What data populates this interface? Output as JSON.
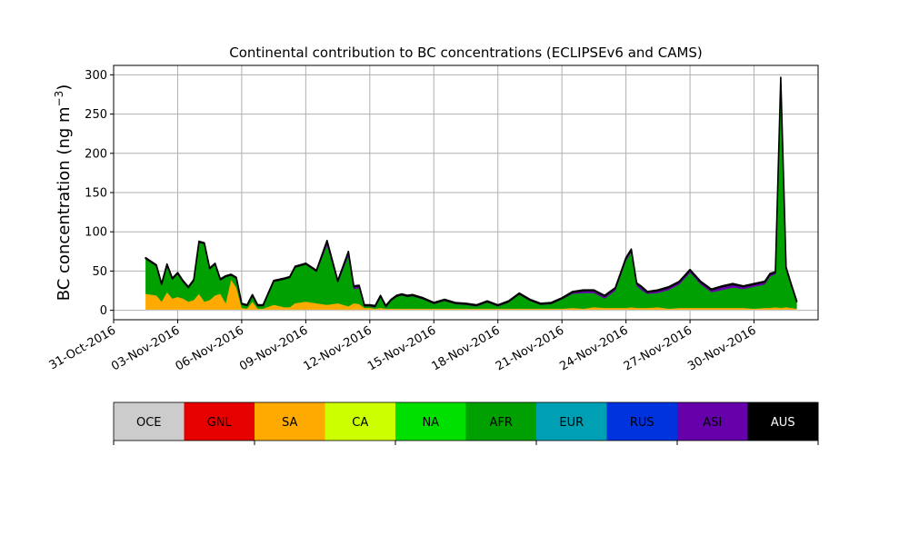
{
  "chart_data": {
    "type": "area",
    "stacked": true,
    "title": "Continental contribution to BC concentrations (ECLIPSEv6 and CAMS)",
    "ylabel": "BC concentration (ng m",
    "ylabel_sup": "−3",
    "ylabel_close": ")",
    "xlabel": "",
    "xlim": [
      "2016-10-31",
      "2016-12-03"
    ],
    "ylim": [
      -12,
      312
    ],
    "yticks": [
      0,
      50,
      100,
      150,
      200,
      250,
      300
    ],
    "xtick_labels": [
      "31-Oct-2016",
      "03-Nov-2016",
      "06-Nov-2016",
      "09-Nov-2016",
      "12-Nov-2016",
      "15-Nov-2016",
      "18-Nov-2016",
      "21-Nov-2016",
      "24-Nov-2016",
      "27-Nov-2016",
      "30-Nov-2016"
    ],
    "grid": true,
    "series_order": [
      "OCE",
      "SA",
      "AFR",
      "ASI",
      "AUS"
    ],
    "x": [
      "2016-11-01 12:00",
      "2016-11-02 00:00",
      "2016-11-02 06:00",
      "2016-11-02 12:00",
      "2016-11-02 18:00",
      "2016-11-03 00:00",
      "2016-11-03 06:00",
      "2016-11-03 12:00",
      "2016-11-03 18:00",
      "2016-11-04 00:00",
      "2016-11-04 06:00",
      "2016-11-04 12:00",
      "2016-11-04 18:00",
      "2016-11-05 00:00",
      "2016-11-05 06:00",
      "2016-11-05 12:00",
      "2016-11-05 18:00",
      "2016-11-06 00:00",
      "2016-11-06 06:00",
      "2016-11-06 12:00",
      "2016-11-06 18:00",
      "2016-11-07 00:00",
      "2016-11-07 12:00",
      "2016-11-08 00:00",
      "2016-11-08 06:00",
      "2016-11-08 12:00",
      "2016-11-09 00:00",
      "2016-11-09 12:00",
      "2016-11-10 00:00",
      "2016-11-10 12:00",
      "2016-11-11 00:00",
      "2016-11-11 06:00",
      "2016-11-11 12:00",
      "2016-11-11 18:00",
      "2016-11-12 00:00",
      "2016-11-12 06:00",
      "2016-11-12 12:00",
      "2016-11-12 18:00",
      "2016-11-13 00:00",
      "2016-11-13 06:00",
      "2016-11-13 12:00",
      "2016-11-13 18:00",
      "2016-11-14 00:00",
      "2016-11-14 12:00",
      "2016-11-15 00:00",
      "2016-11-15 12:00",
      "2016-11-16 00:00",
      "2016-11-16 12:00",
      "2016-11-17 00:00",
      "2016-11-17 12:00",
      "2016-11-18 00:00",
      "2016-11-18 12:00",
      "2016-11-19 00:00",
      "2016-11-19 12:00",
      "2016-11-20 00:00",
      "2016-11-20 12:00",
      "2016-11-21 00:00",
      "2016-11-21 12:00",
      "2016-11-22 00:00",
      "2016-11-22 12:00",
      "2016-11-23 00:00",
      "2016-11-23 12:00",
      "2016-11-24 00:00",
      "2016-11-24 06:00",
      "2016-11-24 12:00",
      "2016-11-24 18:00",
      "2016-11-25 00:00",
      "2016-11-25 12:00",
      "2016-11-26 00:00",
      "2016-11-26 12:00",
      "2016-11-27 00:00",
      "2016-11-27 12:00",
      "2016-11-28 00:00",
      "2016-11-28 12:00",
      "2016-11-29 00:00",
      "2016-11-29 12:00",
      "2016-11-30 00:00",
      "2016-11-30 12:00",
      "2016-11-30 18:00",
      "2016-12-01 00:00",
      "2016-12-01 06:00",
      "2016-12-01 12:00",
      "2016-12-01 18:00",
      "2016-12-02 00:00"
    ],
    "series": [
      {
        "name": "OCE",
        "color": "#cccccc",
        "values": [
          1,
          1,
          1,
          1,
          1,
          1,
          1,
          1,
          1,
          1,
          1,
          1,
          1,
          1,
          1,
          1,
          1,
          1,
          1,
          1,
          1,
          1,
          1,
          1,
          1,
          1,
          1,
          1,
          1,
          1,
          1,
          1,
          1,
          1,
          1,
          1,
          1,
          1,
          1,
          1,
          1,
          1,
          1,
          1,
          1,
          1,
          1,
          1,
          1,
          1,
          1,
          1,
          1,
          1,
          1,
          1,
          1,
          1,
          1,
          1,
          1,
          1,
          1,
          1,
          1,
          1,
          1,
          1,
          1,
          1,
          1,
          1,
          1,
          1,
          1,
          1,
          1,
          1,
          1,
          1,
          1,
          1,
          1,
          1
        ]
      },
      {
        "name": "SA",
        "color": "#ffaa00",
        "values": [
          20,
          18,
          10,
          22,
          14,
          16,
          14,
          10,
          12,
          20,
          10,
          12,
          18,
          20,
          8,
          38,
          28,
          2,
          1,
          10,
          1,
          1,
          6,
          3,
          3,
          8,
          10,
          8,
          6,
          8,
          4,
          8,
          7,
          2,
          2,
          1,
          2,
          1,
          1,
          1,
          1,
          1,
          1,
          1,
          1,
          1,
          1,
          1,
          1,
          1,
          1,
          1,
          1,
          1,
          1,
          1,
          1,
          2,
          1,
          3,
          2,
          2,
          2,
          3,
          2,
          2,
          2,
          3,
          1,
          2,
          2,
          2,
          2,
          2,
          2,
          2,
          1,
          2,
          2,
          3,
          2,
          3,
          2,
          1
        ]
      },
      {
        "name": "AFR",
        "color": "#00a000",
        "values": [
          45,
          38,
          22,
          35,
          25,
          30,
          22,
          18,
          25,
          66,
          74,
          40,
          40,
          18,
          34,
          6,
          12,
          5,
          4,
          8,
          4,
          4,
          30,
          36,
          38,
          46,
          48,
          40,
          76,
          26,
          64,
          18,
          20,
          2,
          2,
          2,
          14,
          2,
          10,
          15,
          17,
          15,
          16,
          12,
          6,
          10,
          6,
          5,
          3,
          8,
          3,
          8,
          18,
          10,
          5,
          6,
          12,
          18,
          20,
          18,
          12,
          22,
          60,
          70,
          28,
          22,
          18,
          18,
          24,
          30,
          45,
          30,
          20,
          23,
          26,
          24,
          28,
          30,
          40,
          42,
          290,
          48,
          28,
          9
        ]
      },
      {
        "name": "ASI",
        "color": "#6600aa",
        "values": [
          0,
          0,
          0,
          0,
          0,
          0,
          0,
          0,
          0,
          0,
          0,
          0,
          0,
          0,
          0,
          0,
          0,
          0,
          0,
          0,
          0,
          0,
          0,
          0,
          0,
          0,
          0,
          1,
          5,
          2,
          5,
          3,
          3,
          1,
          1,
          1,
          1,
          1,
          1,
          1,
          1,
          1,
          1,
          1,
          1,
          1,
          1,
          1,
          1,
          1,
          1,
          1,
          1,
          1,
          1,
          1,
          1,
          2,
          3,
          3,
          3,
          3,
          3,
          3,
          3,
          4,
          2,
          3,
          3,
          3,
          3,
          3,
          3,
          4,
          4,
          3,
          3,
          3,
          3,
          2,
          3,
          2,
          1,
          0
        ]
      },
      {
        "name": "AUS",
        "color": "#000000",
        "values": [
          1,
          1,
          1,
          1,
          1,
          1,
          1,
          1,
          1,
          1,
          1,
          1,
          1,
          1,
          1,
          1,
          1,
          1,
          1,
          1,
          1,
          1,
          1,
          1,
          1,
          1,
          1,
          1,
          1,
          1,
          1,
          1,
          1,
          1,
          1,
          1,
          1,
          1,
          1,
          1,
          1,
          1,
          1,
          1,
          1,
          1,
          1,
          1,
          1,
          1,
          1,
          1,
          1,
          1,
          1,
          1,
          1,
          1,
          1,
          1,
          1,
          1,
          1,
          1,
          1,
          1,
          1,
          1,
          1,
          1,
          1,
          1,
          1,
          1,
          1,
          1,
          1,
          1,
          1,
          1,
          1,
          1,
          1,
          1
        ]
      }
    ],
    "colorbar": [
      {
        "label": "OCE",
        "color": "#cccccc",
        "text_color": "#000000"
      },
      {
        "label": "GNL",
        "color": "#e60000",
        "text_color": "#000000"
      },
      {
        "label": "SA",
        "color": "#ffaa00",
        "text_color": "#000000"
      },
      {
        "label": "CA",
        "color": "#ccff00",
        "text_color": "#000000"
      },
      {
        "label": "NA",
        "color": "#00e000",
        "text_color": "#000000"
      },
      {
        "label": "AFR",
        "color": "#00a000",
        "text_color": "#000000"
      },
      {
        "label": "EUR",
        "color": "#00a0b4",
        "text_color": "#000000"
      },
      {
        "label": "RUS",
        "color": "#0033dd",
        "text_color": "#000000"
      },
      {
        "label": "ASI",
        "color": "#6600aa",
        "text_color": "#000000"
      },
      {
        "label": "AUS",
        "color": "#000000",
        "text_color": "#ffffff"
      }
    ]
  }
}
